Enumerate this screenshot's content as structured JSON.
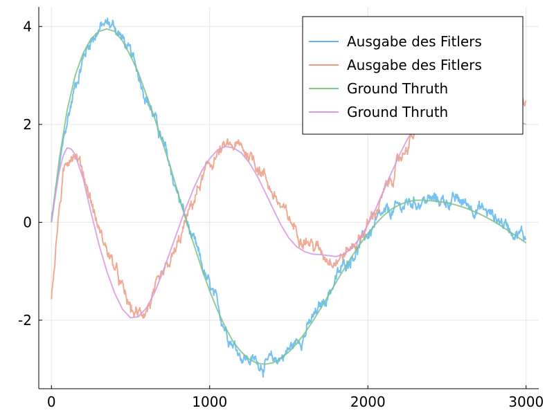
{
  "chart_data": {
    "type": "line",
    "title": "",
    "xlabel": "",
    "ylabel": "",
    "xlim": [
      -80,
      3080
    ],
    "ylim": [
      -3.4,
      4.4
    ],
    "x_ticks": [
      0,
      1000,
      2000,
      3000
    ],
    "y_ticks": [
      4,
      2,
      0,
      -2
    ],
    "x_tick_labels": [
      "0",
      "1000",
      "2000",
      "3000"
    ],
    "y_tick_labels": [
      "4",
      "2",
      "0",
      "-2"
    ],
    "grid": true,
    "legend_position": "top-right",
    "series": [
      {
        "name": "Ausgabe des Fitlers",
        "color": "#5eb6ec",
        "noisy": true,
        "x": [
          0,
          50,
          100,
          150,
          200,
          250,
          300,
          350,
          400,
          450,
          500,
          550,
          600,
          650,
          700,
          750,
          800,
          850,
          900,
          950,
          1000,
          1050,
          1100,
          1150,
          1200,
          1250,
          1300,
          1350,
          1400,
          1450,
          1500,
          1550,
          1600,
          1650,
          1700,
          1750,
          1800,
          1850,
          1900,
          1950,
          2000,
          2050,
          2100,
          2150,
          2200,
          2250,
          2300,
          2350,
          2400,
          2450,
          2500,
          2550,
          2600,
          2650,
          2700,
          2750,
          2800,
          2850,
          2900,
          2950,
          3000
        ],
        "y": [
          0.0,
          1.1,
          2.05,
          2.8,
          3.35,
          3.75,
          3.95,
          4.05,
          4.0,
          3.75,
          3.4,
          3.05,
          2.6,
          2.15,
          1.65,
          1.1,
          0.55,
          0.05,
          -0.45,
          -0.9,
          -1.35,
          -1.75,
          -2.15,
          -2.45,
          -2.7,
          -2.8,
          -2.85,
          -2.9,
          -2.85,
          -2.75,
          -2.6,
          -2.45,
          -2.25,
          -2.0,
          -1.75,
          -1.45,
          -1.15,
          -0.9,
          -0.65,
          -0.45,
          -0.25,
          -0.05,
          0.1,
          0.2,
          0.3,
          0.38,
          0.42,
          0.45,
          0.45,
          0.45,
          0.45,
          0.43,
          0.4,
          0.35,
          0.3,
          0.22,
          0.12,
          0.0,
          -0.1,
          -0.2,
          -0.3
        ]
      },
      {
        "name": "Ausgabe des Fitlers",
        "color": "#eb9c82",
        "noisy": true,
        "x": [
          0,
          25,
          50,
          75,
          100,
          125,
          150,
          200,
          250,
          300,
          350,
          400,
          450,
          500,
          550,
          600,
          650,
          700,
          750,
          800,
          850,
          900,
          950,
          1000,
          1050,
          1100,
          1150,
          1200,
          1250,
          1300,
          1350,
          1400,
          1450,
          1500,
          1550,
          1600,
          1650,
          1700,
          1750,
          1800,
          1850,
          1900,
          1950,
          2000,
          2050,
          2100,
          2150,
          2200,
          2250,
          2300,
          2350,
          2400,
          2450,
          2500,
          2550,
          2600,
          2650,
          2700,
          2750,
          2800,
          2850,
          2900,
          2950,
          3000
        ],
        "y": [
          -1.5,
          -0.6,
          0.3,
          0.9,
          1.25,
          1.45,
          1.45,
          1.05,
          0.45,
          -0.15,
          -0.55,
          -0.95,
          -1.4,
          -1.8,
          -1.9,
          -1.75,
          -1.5,
          -1.2,
          -0.85,
          -0.5,
          0.0,
          0.45,
          0.85,
          1.15,
          1.4,
          1.5,
          1.55,
          1.5,
          1.4,
          1.2,
          0.95,
          0.6,
          0.3,
          0.05,
          -0.15,
          -0.3,
          -0.45,
          -0.6,
          -0.7,
          -0.72,
          -0.65,
          -0.5,
          -0.3,
          -0.05,
          0.25,
          0.55,
          0.9,
          1.25,
          1.6,
          1.85,
          2.1,
          2.3,
          2.5,
          2.65,
          2.75,
          2.8,
          2.8,
          2.78,
          2.75,
          2.7,
          2.62,
          2.55,
          2.47,
          2.4
        ]
      },
      {
        "name": "Ground Thruth",
        "color": "#7fc28b",
        "noisy": false,
        "x": [
          0,
          50,
          100,
          150,
          200,
          250,
          300,
          350,
          400,
          450,
          500,
          550,
          600,
          650,
          700,
          750,
          800,
          850,
          900,
          950,
          1000,
          1050,
          1100,
          1150,
          1200,
          1250,
          1300,
          1350,
          1400,
          1450,
          1500,
          1550,
          1600,
          1650,
          1700,
          1750,
          1800,
          1850,
          1900,
          1950,
          2000,
          2050,
          2100,
          2150,
          2200,
          2250,
          2300,
          2350,
          2400,
          2450,
          2500,
          2550,
          2600,
          2650,
          2700,
          2750,
          2800,
          2850,
          2900,
          2950,
          3000
        ],
        "y": [
          0.0,
          1.3,
          2.3,
          3.0,
          3.45,
          3.75,
          3.9,
          3.95,
          3.9,
          3.7,
          3.4,
          3.05,
          2.6,
          2.15,
          1.65,
          1.15,
          0.6,
          0.05,
          -0.45,
          -0.95,
          -1.4,
          -1.8,
          -2.15,
          -2.45,
          -2.65,
          -2.8,
          -2.88,
          -2.9,
          -2.87,
          -2.78,
          -2.65,
          -2.48,
          -2.27,
          -2.03,
          -1.77,
          -1.5,
          -1.22,
          -0.95,
          -0.69,
          -0.45,
          -0.23,
          -0.03,
          0.14,
          0.27,
          0.36,
          0.42,
          0.45,
          0.45,
          0.44,
          0.42,
          0.4,
          0.36,
          0.31,
          0.25,
          0.18,
          0.1,
          0.01,
          -0.09,
          -0.2,
          -0.31,
          -0.42
        ]
      },
      {
        "name": "Ground Thruth",
        "color": "#d69be0",
        "noisy": false,
        "x": [
          0,
          25,
          50,
          75,
          100,
          125,
          150,
          200,
          250,
          300,
          350,
          400,
          450,
          500,
          550,
          600,
          650,
          700,
          750,
          800,
          850,
          900,
          950,
          1000,
          1050,
          1100,
          1150,
          1200,
          1250,
          1300,
          1350,
          1400,
          1450,
          1500,
          1550,
          1600,
          1650,
          1700,
          1750,
          1800,
          1850,
          1900,
          1950,
          2000,
          2050,
          2100,
          2150,
          2200,
          2250,
          2300,
          2350,
          2400,
          2450,
          2500,
          2550,
          2600,
          2650,
          2700,
          2750,
          2800,
          2850,
          2900,
          2950,
          3000
        ],
        "y": [
          0.0,
          0.55,
          1.05,
          1.38,
          1.52,
          1.5,
          1.38,
          0.9,
          0.2,
          -0.45,
          -1.0,
          -1.45,
          -1.78,
          -1.95,
          -1.93,
          -1.75,
          -1.45,
          -1.05,
          -0.6,
          -0.15,
          0.3,
          0.7,
          1.05,
          1.3,
          1.48,
          1.55,
          1.52,
          1.42,
          1.22,
          0.95,
          0.62,
          0.28,
          -0.05,
          -0.32,
          -0.5,
          -0.6,
          -0.65,
          -0.66,
          -0.68,
          -0.7,
          -0.65,
          -0.52,
          -0.32,
          -0.05,
          0.28,
          0.65,
          1.02,
          1.38,
          1.7,
          1.95,
          2.15,
          2.3,
          2.4,
          2.48,
          2.52,
          2.52,
          2.48,
          2.42,
          2.35,
          2.28,
          2.2,
          2.12,
          2.06,
          2.0
        ]
      }
    ]
  }
}
